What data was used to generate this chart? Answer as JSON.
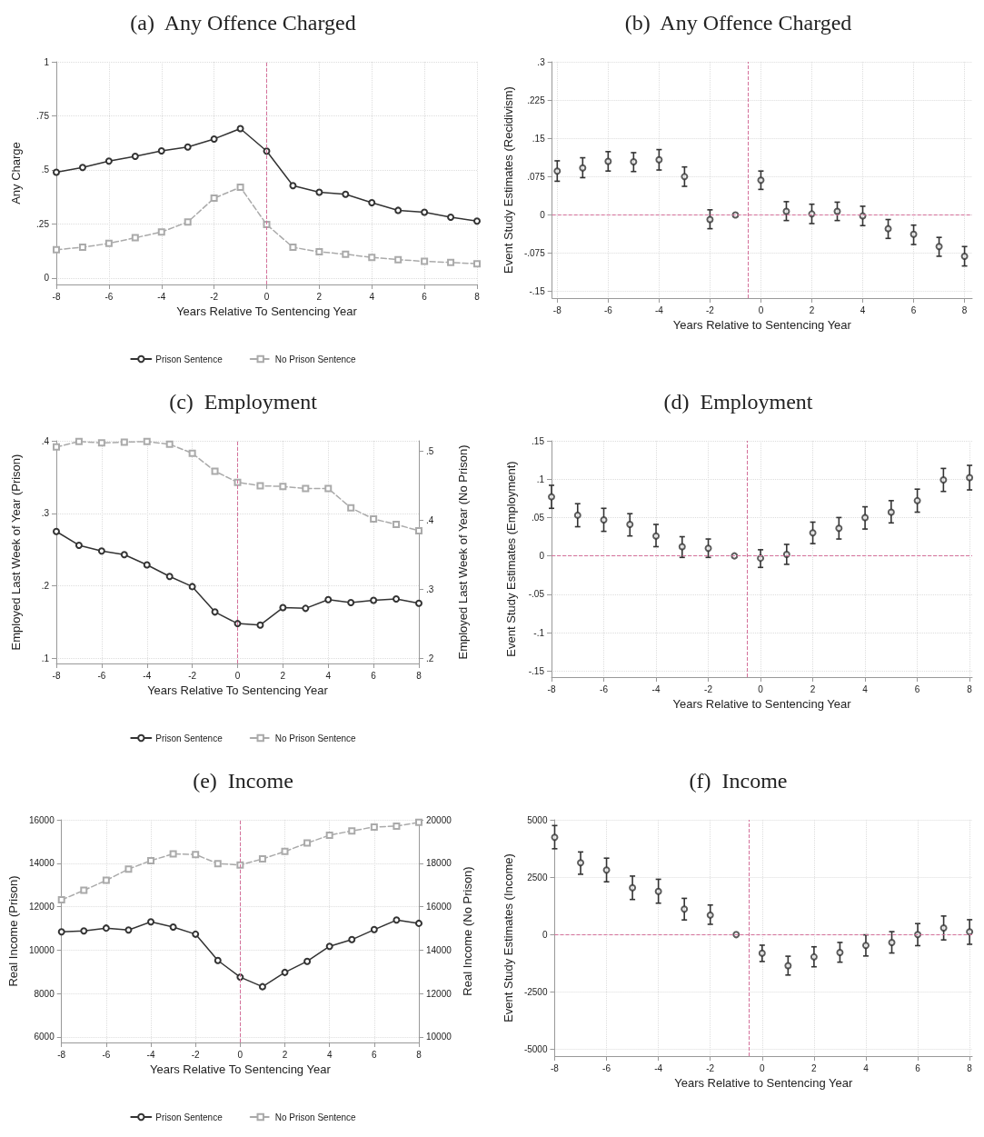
{
  "chart_data": [
    {
      "type": "line",
      "title": "(a)  Any Offence Charged",
      "xlabel": "Years Relative To Sentencing Year",
      "ylabel": "Any Charge",
      "x": [
        -8,
        -7,
        -6,
        -5,
        -4,
        -3,
        -2,
        -1,
        0,
        1,
        2,
        3,
        4,
        5,
        6,
        7,
        8
      ],
      "xlim": [
        -8,
        8
      ],
      "xticks": [
        -8,
        -6,
        -4,
        -2,
        0,
        2,
        4,
        6,
        8
      ],
      "ylim": [
        -0.03,
        1
      ],
      "yticks": [
        0,
        {
          "value": 0.25,
          "label": ".25"
        },
        {
          "value": 0.5,
          "label": ".5"
        },
        {
          "value": 0.75,
          "label": ".75"
        },
        1
      ],
      "grid": true,
      "legend": "bottom",
      "series": [
        {
          "name": "Prison Sentence",
          "color": "#333333",
          "marker": "circle",
          "line_style": "solid",
          "values": [
            0.489,
            0.511,
            0.541,
            0.563,
            0.588,
            0.606,
            0.643,
            0.691,
            0.587,
            0.427,
            0.397,
            0.387,
            0.348,
            0.313,
            0.304,
            0.281,
            0.263
          ]
        },
        {
          "name": "No Prison Sentence",
          "color": "#aaaaaa",
          "marker": "square",
          "line_style": "dashed",
          "values": [
            0.131,
            0.142,
            0.16,
            0.186,
            0.213,
            0.259,
            0.369,
            0.42,
            0.247,
            0.142,
            0.121,
            0.11,
            0.095,
            0.085,
            0.077,
            0.072,
            0.066
          ]
        }
      ],
      "ref_lines": [
        {
          "axis": "x",
          "value": 0,
          "color": "#d4709a",
          "line_style": "dashed"
        }
      ]
    },
    {
      "type": "scatter",
      "title": "(b)  Any Offence Charged",
      "xlabel": "Years Relative to Sentencing Year",
      "ylabel": "Event Study Estimates (Recidivism)",
      "x": [
        -8,
        -7,
        -6,
        -5,
        -4,
        -3,
        -2,
        -1,
        0,
        1,
        2,
        3,
        4,
        5,
        6,
        7,
        8
      ],
      "xlim": [
        -8.2,
        8.3
      ],
      "xticks": [
        -8,
        -6,
        -4,
        -2,
        0,
        2,
        4,
        6,
        8
      ],
      "ylim": [
        -0.163,
        0.3
      ],
      "yticks": [
        {
          "value": -0.15,
          "label": "-.15"
        },
        {
          "value": -0.075,
          "label": "-.075"
        },
        0,
        {
          "value": 0.075,
          "label": ".075"
        },
        {
          "value": 0.15,
          "label": ".15"
        },
        {
          "value": 0.225,
          "label": ".225"
        },
        {
          "value": 0.3,
          "label": ".3"
        }
      ],
      "grid": true,
      "series": [
        {
          "color": "#333333",
          "marker": "circle",
          "values": [
            0.086,
            0.092,
            0.105,
            0.104,
            0.108,
            0.075,
            -0.009,
            0,
            0.068,
            0.007,
            0.002,
            0.007,
            -0.002,
            -0.027,
            -0.038,
            -0.062,
            -0.081
          ],
          "errors": [
            [
              0.066,
              0.106
            ],
            [
              0.073,
              0.112
            ],
            [
              0.086,
              0.124
            ],
            [
              0.085,
              0.122
            ],
            [
              0.088,
              0.128
            ],
            [
              0.056,
              0.094
            ],
            [
              -0.027,
              0.01
            ],
            null,
            [
              0.05,
              0.086
            ],
            [
              -0.011,
              0.026
            ],
            [
              -0.017,
              0.021
            ],
            [
              -0.011,
              0.025
            ],
            [
              -0.021,
              0.017
            ],
            [
              -0.046,
              -0.009
            ],
            [
              -0.058,
              -0.02
            ],
            [
              -0.081,
              -0.044
            ],
            [
              -0.1,
              -0.062
            ]
          ]
        }
      ],
      "ref_lines": [
        {
          "axis": "x",
          "value": -0.5,
          "color": "#d4709a",
          "line_style": "dashed"
        },
        {
          "axis": "y",
          "value": 0,
          "color": "#d4709a",
          "line_style": "dashed"
        }
      ]
    },
    {
      "type": "line",
      "title": "(c)  Employment",
      "xlabel": "Years Relative To Sentencing Year",
      "ylabel": "Employed Last Week of Year (Prison)",
      "y2label": "Employed Last Week of Year (No Prison)",
      "x": [
        -8,
        -7,
        -6,
        -5,
        -4,
        -3,
        -2,
        -1,
        0,
        1,
        2,
        3,
        4,
        5,
        6,
        7,
        8
      ],
      "xlim": [
        -8,
        8
      ],
      "xticks": [
        -8,
        -6,
        -4,
        -2,
        0,
        2,
        4,
        6,
        8
      ],
      "ylim": [
        0.093,
        0.4
      ],
      "yticks": [
        {
          "value": 0.1,
          "label": ".1"
        },
        {
          "value": 0.2,
          "label": ".2"
        },
        {
          "value": 0.3,
          "label": ".3"
        },
        {
          "value": 0.4,
          "label": ".4"
        }
      ],
      "y2lim": [
        0.193,
        0.515
      ],
      "y2ticks": [
        {
          "value": 0.2,
          "label": ".2"
        },
        {
          "value": 0.3,
          "label": ".3"
        },
        {
          "value": 0.4,
          "label": ".4"
        },
        {
          "value": 0.5,
          "label": ".5"
        }
      ],
      "grid": true,
      "legend": "bottom",
      "series": [
        {
          "name": "Prison Sentence",
          "color": "#333333",
          "marker": "circle",
          "line_style": "solid",
          "values": [
            0.275,
            0.256,
            0.248,
            0.243,
            0.229,
            0.213,
            0.199,
            0.164,
            0.148,
            0.146,
            0.17,
            0.169,
            0.181,
            0.177,
            0.18,
            0.182,
            0.176
          ]
        },
        {
          "name": "No Prison Sentence",
          "color": "#aaaaaa",
          "marker": "square",
          "line_style": "dashed",
          "axis": "y2",
          "values": [
            0.506,
            0.514,
            0.512,
            0.513,
            0.514,
            0.51,
            0.497,
            0.471,
            0.455,
            0.45,
            0.449,
            0.446,
            0.446,
            0.418,
            0.402,
            0.394,
            0.385
          ]
        }
      ],
      "ref_lines": [
        {
          "axis": "x",
          "value": 0,
          "color": "#d4709a",
          "line_style": "dashed"
        }
      ]
    },
    {
      "type": "scatter",
      "title": "(d)  Employment",
      "xlabel": "Years Relative to Sentencing Year",
      "ylabel": "Event Study Estimates (Employment)",
      "x": [
        -8,
        -7,
        -6,
        -5,
        -4,
        -3,
        -2,
        -1,
        0,
        1,
        2,
        3,
        4,
        5,
        6,
        7,
        8
      ],
      "xlim": [
        -8,
        8.1
      ],
      "xticks": [
        -8,
        -6,
        -4,
        -2,
        0,
        2,
        4,
        6,
        8
      ],
      "ylim": [
        -0.158,
        0.15
      ],
      "yticks": [
        {
          "value": -0.15,
          "label": "-.15"
        },
        {
          "value": -0.1,
          "label": "-.1"
        },
        {
          "value": -0.05,
          "label": "-.05"
        },
        0,
        {
          "value": 0.05,
          "label": ".05"
        },
        {
          "value": 0.1,
          "label": ".1"
        },
        {
          "value": 0.15,
          "label": ".15"
        }
      ],
      "grid": true,
      "series": [
        {
          "color": "#333333",
          "marker": "circle",
          "values": [
            0.077,
            0.053,
            0.047,
            0.041,
            0.026,
            0.012,
            0.01,
            0,
            -0.003,
            0.002,
            0.03,
            0.036,
            0.05,
            0.057,
            0.072,
            0.099,
            0.102
          ],
          "errors": [
            [
              0.062,
              0.092
            ],
            [
              0.038,
              0.068
            ],
            [
              0.032,
              0.062
            ],
            [
              0.026,
              0.055
            ],
            [
              0.012,
              0.041
            ],
            [
              -0.002,
              0.025
            ],
            [
              -0.002,
              0.022
            ],
            null,
            [
              -0.015,
              0.008
            ],
            [
              -0.011,
              0.015
            ],
            [
              0.016,
              0.044
            ],
            [
              0.022,
              0.05
            ],
            [
              0.035,
              0.064
            ],
            [
              0.043,
              0.072
            ],
            [
              0.057,
              0.087
            ],
            [
              0.084,
              0.114
            ],
            [
              0.086,
              0.118
            ]
          ]
        }
      ],
      "ref_lines": [
        {
          "axis": "x",
          "value": -0.5,
          "color": "#d4709a",
          "line_style": "dashed"
        },
        {
          "axis": "y",
          "value": 0,
          "color": "#d4709a",
          "line_style": "dashed"
        }
      ]
    },
    {
      "type": "line",
      "title": "(e)  Income",
      "xlabel": "Years Relative To Sentencing Year",
      "ylabel": "Real Income (Prison)",
      "y2label": "Real Income (No Prison)",
      "x": [
        -8,
        -7,
        -6,
        -5,
        -4,
        -3,
        -2,
        -1,
        0,
        1,
        2,
        3,
        4,
        5,
        6,
        7,
        8
      ],
      "xlim": [
        -8,
        8
      ],
      "xticks": [
        -8,
        -6,
        -4,
        -2,
        0,
        2,
        4,
        6,
        8
      ],
      "ylim": [
        5740,
        16000
      ],
      "yticks": [
        6000,
        8000,
        10000,
        12000,
        14000,
        16000
      ],
      "y2lim": [
        9740,
        20000
      ],
      "y2ticks": [
        10000,
        12000,
        14000,
        16000,
        18000,
        20000
      ],
      "grid": true,
      "legend": "bottom",
      "series": [
        {
          "name": "Prison Sentence",
          "color": "#333333",
          "marker": "circle",
          "line_style": "solid",
          "values": [
            10840,
            10880,
            11010,
            10920,
            11300,
            11060,
            10730,
            9520,
            8750,
            8310,
            8970,
            9480,
            10170,
            10480,
            10940,
            11380,
            11230
          ]
        },
        {
          "name": "No Prison Sentence",
          "color": "#aaaaaa",
          "marker": "square",
          "line_style": "dashed",
          "axis": "y2",
          "values": [
            16310,
            16750,
            17210,
            17730,
            18120,
            18430,
            18400,
            17980,
            17920,
            18200,
            18540,
            18930,
            19290,
            19490,
            19670,
            19710,
            19880
          ]
        }
      ],
      "ref_lines": [
        {
          "axis": "x",
          "value": 0,
          "color": "#d4709a",
          "line_style": "dashed"
        }
      ]
    },
    {
      "type": "scatter",
      "title": "(f)  Income",
      "xlabel": "Years Relative to Sentencing Year",
      "ylabel": "Event Study Estimates (Income)",
      "x": [
        -8,
        -7,
        -6,
        -5,
        -4,
        -3,
        -2,
        -1,
        0,
        1,
        2,
        3,
        4,
        5,
        6,
        7,
        8
      ],
      "xlim": [
        -8,
        8.1
      ],
      "xticks": [
        -8,
        -6,
        -4,
        -2,
        0,
        2,
        4,
        6,
        8
      ],
      "ylim": [
        -5290,
        5000
      ],
      "yticks": [
        -5000,
        -2500,
        0,
        2500,
        5000
      ],
      "grid": true,
      "series": [
        {
          "color": "#333333",
          "marker": "circle",
          "values": [
            4240,
            3130,
            2810,
            2040,
            1880,
            1110,
            850,
            0,
            -810,
            -1350,
            -970,
            -780,
            -470,
            -340,
            0,
            290,
            120
          ],
          "errors": [
            [
              3740,
              4750
            ],
            [
              2630,
              3600
            ],
            [
              2300,
              3330
            ],
            [
              1530,
              2550
            ],
            [
              1370,
              2410
            ],
            [
              640,
              1580
            ],
            [
              450,
              1290
            ],
            null,
            [
              -1170,
              -460
            ],
            [
              -1760,
              -940
            ],
            [
              -1400,
              -530
            ],
            [
              -1200,
              -340
            ],
            [
              -930,
              -10
            ],
            [
              -800,
              130
            ],
            [
              -480,
              480
            ],
            [
              -230,
              810
            ],
            [
              -420,
              650
            ]
          ]
        }
      ],
      "ref_lines": [
        {
          "axis": "x",
          "value": -0.5,
          "color": "#d4709a",
          "line_style": "dashed"
        },
        {
          "axis": "y",
          "value": 0,
          "color": "#d4709a",
          "line_style": "dashed"
        }
      ]
    }
  ]
}
